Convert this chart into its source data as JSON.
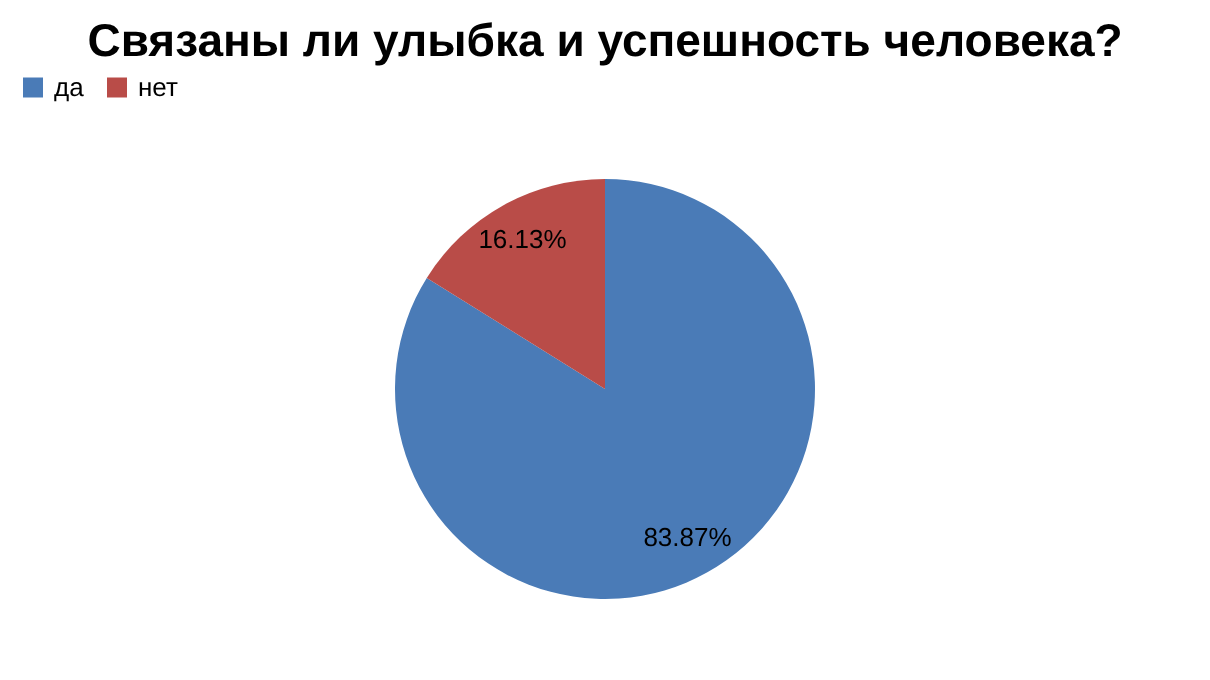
{
  "chart_data": {
    "type": "pie",
    "title": "Связаны ли улыбка и успешность человека?",
    "categories": [
      "да",
      "нет"
    ],
    "values": [
      83.87,
      16.13
    ],
    "colors": [
      "#4a7bb7",
      "#b94c48"
    ],
    "value_labels": [
      "83.87%",
      "16.13%"
    ],
    "legend": "top"
  }
}
